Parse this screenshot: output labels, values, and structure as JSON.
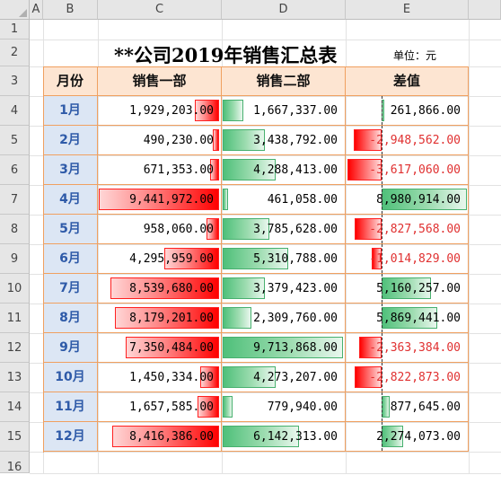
{
  "columns": [
    "A",
    "B",
    "C",
    "D",
    "E"
  ],
  "rows": [
    "1",
    "2",
    "3",
    "4",
    "5",
    "6",
    "7",
    "8",
    "9",
    "10",
    "11",
    "12",
    "13",
    "14",
    "15",
    "16"
  ],
  "title": "**公司2019年销售汇总表",
  "unit": "单位：元",
  "headers": {
    "month": "月份",
    "dept1": "销售一部",
    "dept2": "销售二部",
    "diff": "差值"
  },
  "months": [
    "1月",
    "2月",
    "3月",
    "4月",
    "5月",
    "6月",
    "7月",
    "8月",
    "9月",
    "10月",
    "11月",
    "12月"
  ],
  "dept1_display": [
    "1,929,203.00",
    "490,230.00",
    "671,353.00",
    "9,441,972.00",
    "958,060.00",
    "4,295,959.00",
    "8,539,680.00",
    "8,179,201.00",
    "7,350,484.00",
    "1,450,334.00",
    "1,657,585.00",
    "8,416,386.00"
  ],
  "dept2_display": [
    "1,667,337.00",
    "3,438,792.00",
    "4,288,413.00",
    "461,058.00",
    "3,785,628.00",
    "5,310,788.00",
    "3,379,423.00",
    "2,309,760.00",
    "9,713,868.00",
    "4,273,207.00",
    "779,940.00",
    "6,142,313.00"
  ],
  "diff_display": [
    "261,866.00",
    "-2,948,562.00",
    "-3,617,060.00",
    "8,980,914.00",
    "-2,827,568.00",
    "-1,014,829.00",
    "5,160,257.00",
    "5,869,441.00",
    "-2,363,384.00",
    "-2,822,873.00",
    "877,645.00",
    "2,274,073.00"
  ],
  "dept1_values": [
    1929203,
    490230,
    671353,
    9441972,
    958060,
    4295959,
    8539680,
    8179201,
    7350484,
    1450334,
    1657585,
    8416386
  ],
  "dept2_values": [
    1667337,
    3438792,
    4288413,
    461058,
    3785628,
    5310788,
    3379423,
    2309760,
    9713868,
    4273207,
    779940,
    6142313
  ],
  "diff_values": [
    261866,
    -2948562,
    -3617060,
    8980914,
    -2827568,
    -1014829,
    5160257,
    5869441,
    -2363384,
    -2822873,
    877645,
    2274073
  ],
  "colors": {
    "header_fill": "#fde5d2",
    "month_fill": "#dce6f4",
    "month_text": "#2e5aa8",
    "border": "#f0a060",
    "negative_text": "#e03030",
    "bar_red": "#ff0000",
    "bar_green": "#4fc07a"
  }
}
